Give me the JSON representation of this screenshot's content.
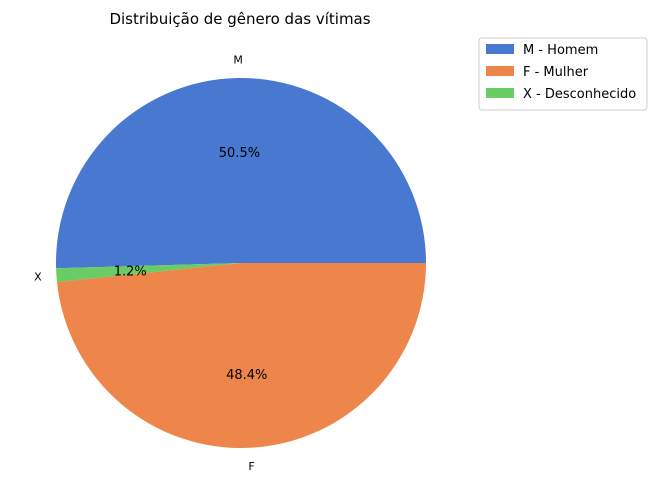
{
  "chart_data": {
    "type": "pie",
    "title": "Distribuição de gênero das vítimas",
    "slices": [
      {
        "label": "M",
        "legend": "M - Homem",
        "pct_label": "50.5%",
        "value": 50.5,
        "color": "#4878d0"
      },
      {
        "label": "X",
        "legend": "X - Desconhecido",
        "pct_label": "1.2%",
        "value": 1.2,
        "color": "#6acc64"
      },
      {
        "label": "F",
        "legend": "F - Mulher",
        "pct_label": "48.4%",
        "value": 48.4,
        "color": "#ee854a"
      }
    ],
    "legend_order": [
      "M - Homem",
      "F - Mulher",
      "X - Desconhecido"
    ],
    "legend_colors": [
      "#4878d0",
      "#ee854a",
      "#6acc64"
    ],
    "legend_placement": "top-right-outside"
  }
}
